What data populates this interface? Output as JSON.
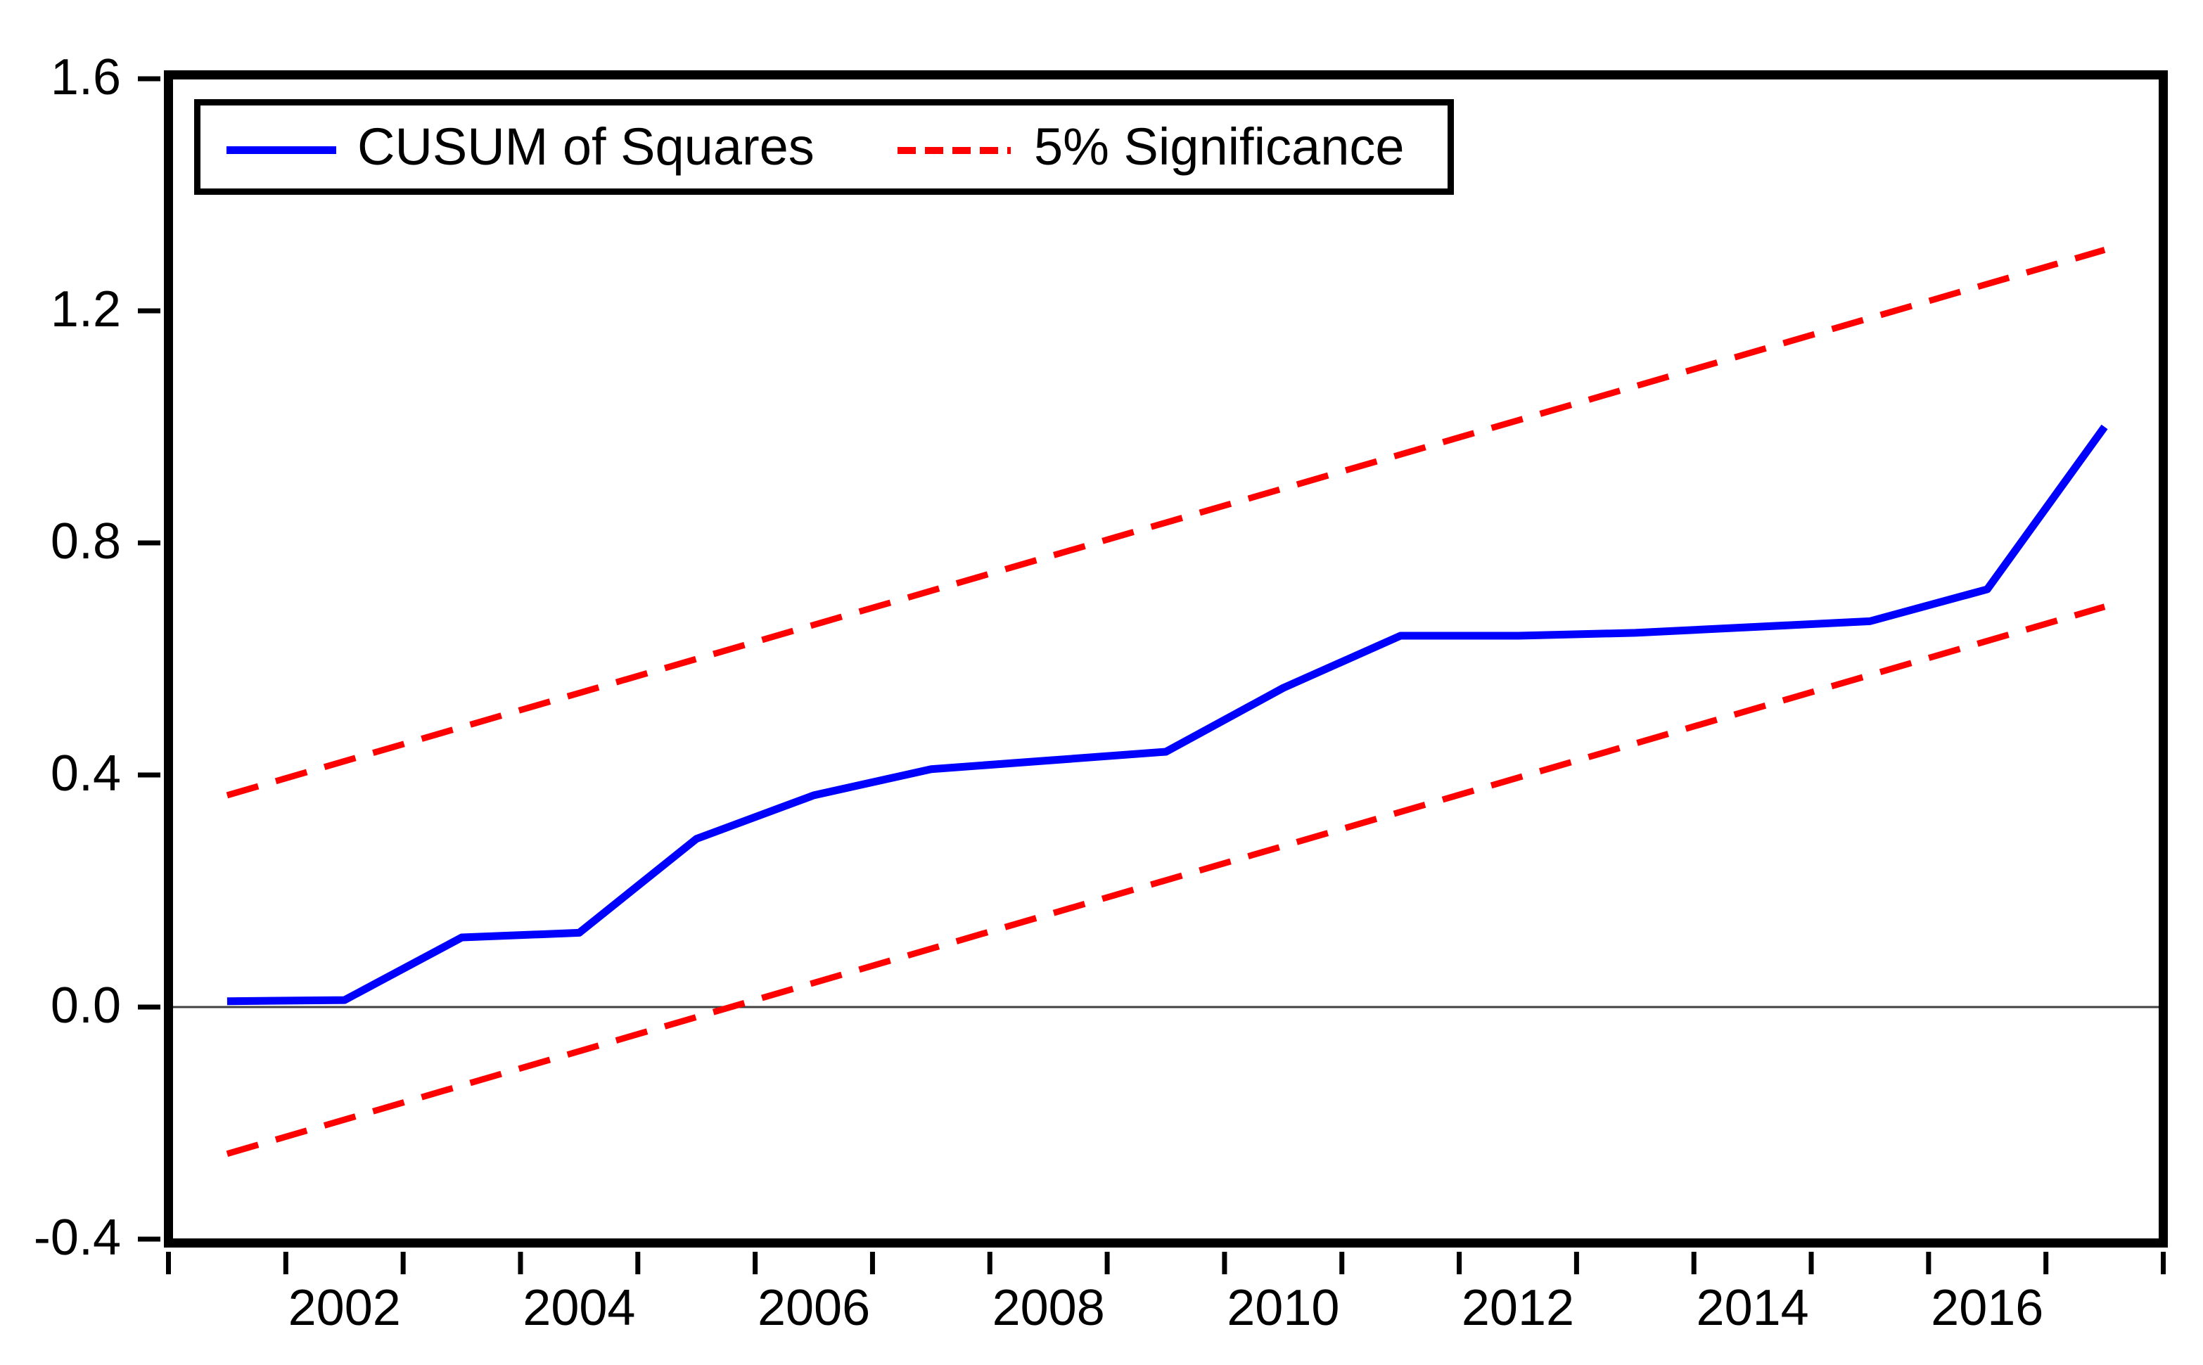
{
  "figure": {
    "background": "#ffffff",
    "axis_color": "#000000",
    "zero_line_color": "#404040"
  },
  "legend": {
    "cusum_label": "CUSUM of Squares",
    "significance_label": "5% Significance"
  },
  "chart_data": {
    "type": "line",
    "title": "",
    "xlabel": "",
    "ylabel": "",
    "x_range": {
      "start_year": 2001,
      "end_year": 2017
    },
    "ylim": [
      -0.4,
      1.6
    ],
    "grid": false,
    "zero_line": true,
    "legend_position": "top-left-inside",
    "x": [
      2001,
      2002,
      2003,
      2004,
      2005,
      2006,
      2007,
      2008,
      2009,
      2010,
      2011,
      2012,
      2013,
      2014,
      2015,
      2016,
      2017
    ],
    "series": [
      {
        "name": "CUSUM of Squares",
        "color": "#0000ff",
        "style": "solid",
        "values": [
          0.01,
          0.012,
          0.12,
          0.128,
          0.29,
          0.365,
          0.41,
          0.425,
          0.44,
          0.55,
          0.64,
          0.64,
          0.645,
          0.655,
          0.665,
          0.72,
          1.0
        ]
      },
      {
        "name": "5% Significance upper bound",
        "color": "#ff0000",
        "style": "dashed",
        "x": [
          2001,
          2017
        ],
        "values": [
          0.365,
          1.305
        ]
      },
      {
        "name": "5% Significance lower bound",
        "color": "#ff0000",
        "style": "dashed",
        "x": [
          2001,
          2017
        ],
        "values": [
          -0.253,
          0.69
        ]
      }
    ],
    "y_ticks": [
      {
        "value": 1.6,
        "label": "1.6"
      },
      {
        "value": 1.2,
        "label": "1.2"
      },
      {
        "value": 0.8,
        "label": "0.8"
      },
      {
        "value": 0.4,
        "label": "0.4"
      },
      {
        "value": 0.0,
        "label": "0.0"
      },
      {
        "value": -0.4,
        "label": "-0.4"
      }
    ],
    "x_tick_labels": [
      "2002",
      "2004",
      "2006",
      "2008",
      "2010",
      "2012",
      "2014",
      "2016"
    ]
  }
}
